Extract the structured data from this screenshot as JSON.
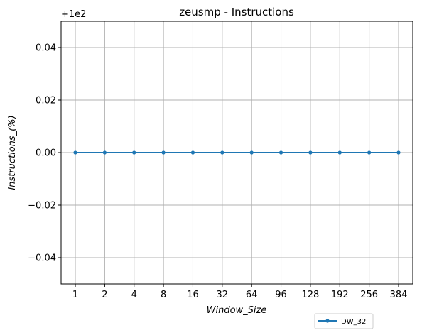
{
  "chart_data": {
    "type": "line",
    "title": "zeusmp - Instructions",
    "xlabel": "Window_Size",
    "ylabel": "Instructions_(%)",
    "offset_label": "+1e2",
    "categories": [
      "1",
      "2",
      "4",
      "8",
      "16",
      "32",
      "64",
      "96",
      "128",
      "192",
      "256",
      "384"
    ],
    "series": [
      {
        "name": "DW_32",
        "color": "#1f77b4",
        "marker": "circle",
        "values": [
          100,
          100,
          100,
          100,
          100,
          100,
          100,
          100,
          100,
          100,
          100,
          100
        ]
      }
    ],
    "yoffset": 100,
    "ylim": [
      -0.05,
      0.05
    ],
    "yticks": [
      -0.04,
      -0.02,
      0.0,
      0.02,
      0.04
    ],
    "ytick_labels": [
      "−0.04",
      "−0.02",
      "0.00",
      "0.02",
      "0.04"
    ],
    "grid": true,
    "legend_position": "bottom-right, below axes"
  }
}
